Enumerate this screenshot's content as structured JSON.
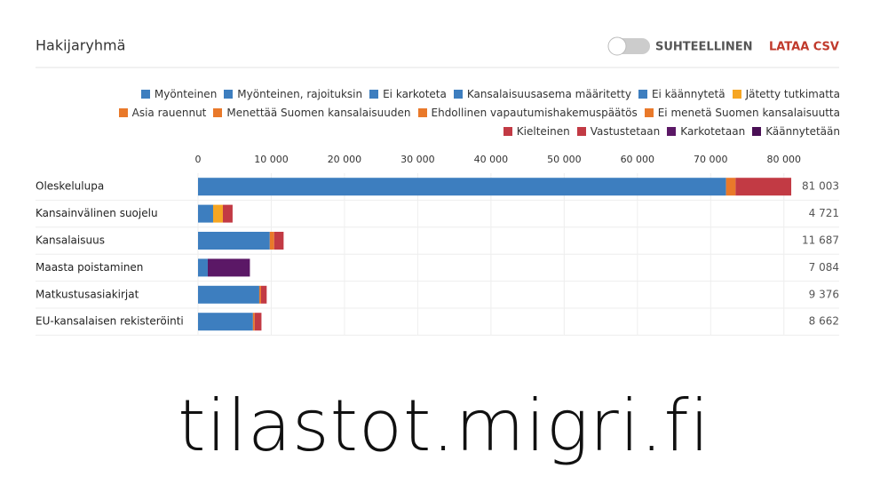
{
  "chart_data": {
    "type": "stacked-bar-horizontal",
    "title": "Hakijaryhmä",
    "categories": [
      "Oleskelulupa",
      "Kansainvälinen suojelu",
      "Kansalaisuus",
      "Maasta poistaminen",
      "Matkustusasiakirjat",
      "EU-kansalaisen rekisteröinti"
    ],
    "series": [
      {
        "name": "Myönteinen",
        "color": "#3d7ebf",
        "values": [
          72100,
          2060,
          9800,
          0,
          8360,
          7500
        ]
      },
      {
        "name": "Myönteinen, rajoituksin",
        "color": "#3d7ebf",
        "values": [
          0,
          0,
          0,
          0,
          0,
          0
        ]
      },
      {
        "name": "Ei karkoteta",
        "color": "#3d7ebf",
        "values": [
          0,
          0,
          0,
          1330,
          0,
          0
        ]
      },
      {
        "name": "Kansalaisuusasema määritetty",
        "color": "#3d7ebf",
        "values": [
          0,
          0,
          0,
          0,
          0,
          0
        ]
      },
      {
        "name": "Ei käännytetä",
        "color": "#3d7ebf",
        "values": [
          0,
          0,
          0,
          0,
          0,
          0
        ]
      },
      {
        "name": "Jätetty tutkimatta",
        "color": "#f6a623",
        "values": [
          0,
          1330,
          0,
          0,
          0,
          0
        ]
      },
      {
        "name": "Asia rauennut",
        "color": "#e9792a",
        "values": [
          1300,
          0,
          600,
          0,
          240,
          240
        ]
      },
      {
        "name": "Menettää Suomen kansalaisuuden",
        "color": "#e9792a",
        "values": [
          0,
          0,
          0,
          0,
          0,
          0
        ]
      },
      {
        "name": "Ehdollinen vapautumishakemuspäätös",
        "color": "#e9792a",
        "values": [
          0,
          0,
          0,
          0,
          0,
          0
        ]
      },
      {
        "name": "Ei menetä Suomen kansalaisuutta",
        "color": "#e9792a",
        "values": [
          0,
          0,
          0,
          0,
          0,
          0
        ]
      },
      {
        "name": "Kielteinen",
        "color": "#c23a44",
        "values": [
          7603,
          1331,
          1287,
          0,
          776,
          922
        ]
      },
      {
        "name": "Vastustetaan",
        "color": "#c23a44",
        "values": [
          0,
          0,
          0,
          0,
          0,
          0
        ]
      },
      {
        "name": "Karkotetaan",
        "color": "#5b1866",
        "values": [
          0,
          0,
          0,
          5754,
          0,
          0
        ]
      },
      {
        "name": "Käännytetään",
        "color": "#4a0f55",
        "values": [
          0,
          0,
          0,
          0,
          0,
          0
        ]
      }
    ],
    "totals": [
      81003,
      4721,
      11687,
      7084,
      9376,
      8662
    ],
    "total_labels": [
      "81 003",
      "4 721",
      "11 687",
      "7 084",
      "9 376",
      "8 662"
    ],
    "xlim": [
      0,
      85000
    ],
    "xticks": [
      0,
      {
        "value": 10000,
        "label": "10 000"
      },
      {
        "value": 20000,
        "label": "20 000"
      },
      {
        "value": 30000,
        "label": "30 000"
      },
      {
        "value": 40000,
        "label": "40 000"
      },
      {
        "value": 50000,
        "label": "50 000"
      },
      {
        "value": 60000,
        "label": "60 000"
      },
      {
        "value": 70000,
        "label": "70 000"
      },
      {
        "value": 80000,
        "label": "80 000"
      }
    ],
    "grid": true
  },
  "controls": {
    "toggle_label": "SUHTEELLINEN",
    "download_label": "LATAA CSV"
  },
  "footer": "tilastot.migri.fi"
}
